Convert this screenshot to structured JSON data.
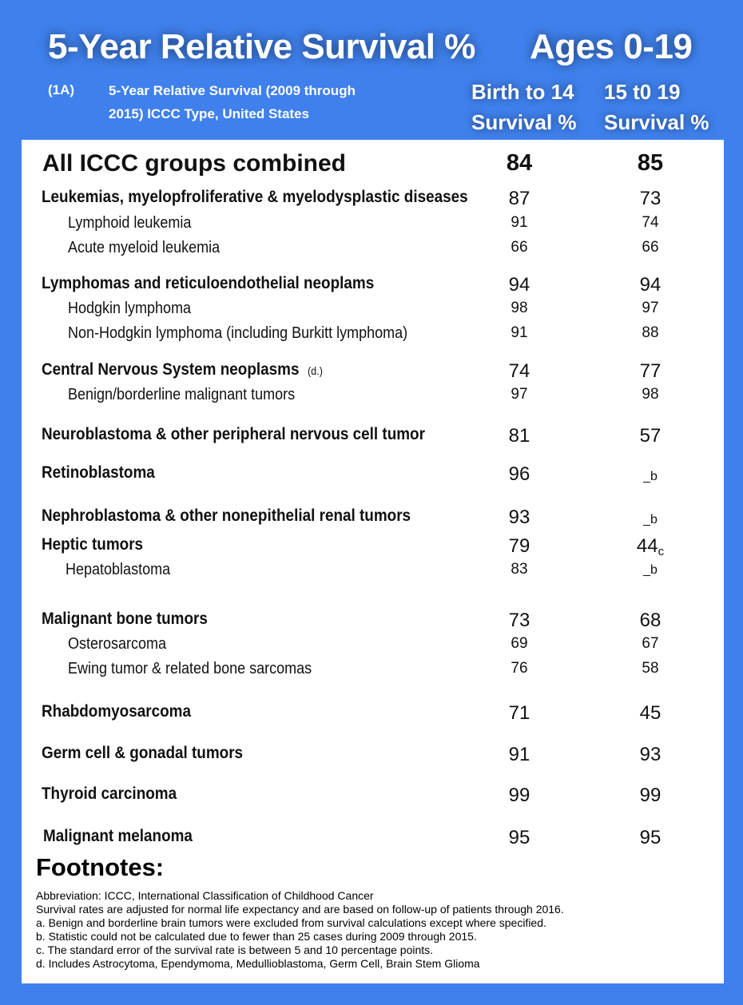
{
  "header": {
    "title_left": "5-Year Relative Survival %",
    "title_right": "Ages 0-19",
    "table_code": "(1A)",
    "table_desc": "5-Year Relative Survival (2009 through 2015) ICCC Type, United States",
    "col1_line1": "Birth to 14",
    "col1_line2": "Survival %",
    "col2_line1": "15 t0 19",
    "col2_line2": "Survival %"
  },
  "rows": [
    {
      "label": "All ICCC groups combined",
      "v1": "84",
      "v2": "85"
    },
    {
      "label": "Leukemias, myelopfroliferative & myelodysplastic diseases",
      "v1": "87",
      "v2": "73"
    },
    {
      "label": "Lymphoid leukemia",
      "v1": "91",
      "v2": "74"
    },
    {
      "label": "Acute myeloid leukemia",
      "v1": "66",
      "v2": "66"
    },
    {
      "label": "Lymphomas and reticuloendothelial neoplams",
      "v1": "94",
      "v2": "94"
    },
    {
      "label": "Hodgkin lymphoma",
      "v1": "98",
      "v2": "97"
    },
    {
      "label": "Non-Hodgkin lymphoma (including Burkitt lymphoma)",
      "v1": "91",
      "v2": "88"
    },
    {
      "label": "Central Nervous System neoplasms",
      "note": "(d.)",
      "v1": "74",
      "v2": "77"
    },
    {
      "label": "Benign/borderline malignant tumors",
      "v1": "97",
      "v2": "98"
    },
    {
      "label": "Neuroblastoma & other peripheral nervous cell tumor",
      "v1": "81",
      "v2": "57"
    },
    {
      "label": "Retinoblastoma",
      "v1": "96",
      "v2": "_b"
    },
    {
      "label": "Nephroblastoma & other nonepithelial renal tumors",
      "v1": "93",
      "v2": "_b"
    },
    {
      "label": "Heptic tumors",
      "v1": "79",
      "v2": "44",
      "v2_note": "c"
    },
    {
      "label": "Hepatoblastoma",
      "v1": "83",
      "v2": "_b"
    },
    {
      "label": "Malignant bone tumors",
      "v1": "73",
      "v2": "68"
    },
    {
      "label": "Osterosarcoma",
      "v1": "69",
      "v2": "67"
    },
    {
      "label": "Ewing tumor & related bone sarcomas",
      "v1": "76",
      "v2": "58"
    },
    {
      "label": "Rhabdomyosarcoma",
      "v1": "71",
      "v2": "45"
    },
    {
      "label": "Germ cell & gonadal tumors",
      "v1": "91",
      "v2": "93"
    },
    {
      "label": "Thyroid carcinoma",
      "v1": "99",
      "v2": "99"
    },
    {
      "label": "Malignant melanoma",
      "v1": "95",
      "v2": "95"
    }
  ],
  "footnotes": {
    "title": "Footnotes:",
    "lines": [
      "Abbreviation: ICCC, International Classification of Childhood Cancer",
      "Survival rates are adjusted for normal life expectancy and are based on follow-up of patients through 2016.",
      "a. Benign and borderline brain tumors were excluded from survival calculations except where specified.",
      "b. Statistic could not be calculated due to fewer than 25 cases during 2009 through 2015.",
      "c. The standard error of the survival rate is between 5 and 10 percentage points.",
      "d. Includes Astrocytoma, Ependymoma, Medullioblastoma, Germ Cell, Brain Stem Glioma"
    ]
  }
}
